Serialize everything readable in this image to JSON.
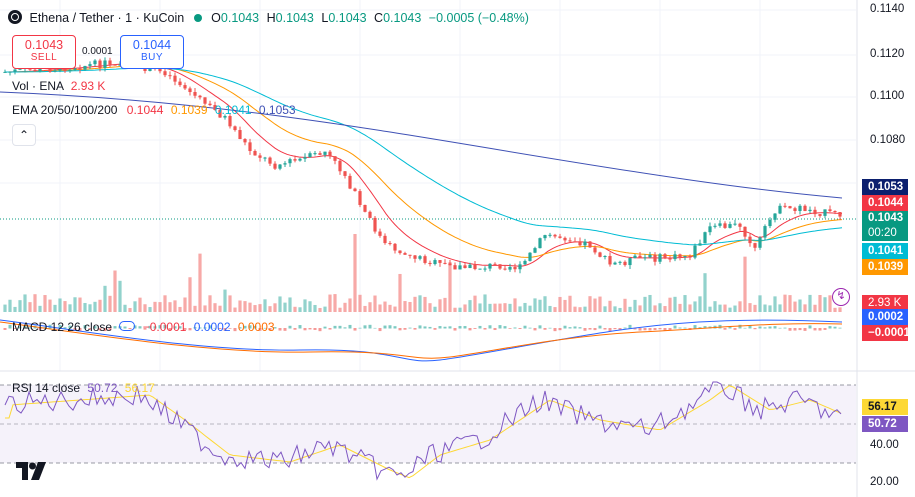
{
  "header": {
    "symbol": "Ethena / Tether · 1 · KuCoin",
    "o_label": "O",
    "o": "0.1043",
    "h_label": "H",
    "h": "0.1043",
    "l_label": "L",
    "l": "0.1043",
    "c_label": "C",
    "c": "0.1043",
    "change": "−0.0005 (−0.48%)"
  },
  "trade": {
    "sell_price": "0.1043",
    "sell_label": "SELL",
    "spread": "0.0001",
    "buy_price": "0.1044",
    "buy_label": "BUY"
  },
  "indicators": {
    "vol_label": "Vol · ENA",
    "vol_value": "2.93 K",
    "ema_label": "EMA 20/50/100/200",
    "ema20": "0.1044",
    "ema50": "0.1039",
    "ema100": "0.1041",
    "ema200": "0.1053",
    "macd_label": "MACD 12 26 close",
    "macd_hist": "−0.0001",
    "macd_line": "0.0002",
    "macd_signal": "0.0003",
    "rsi_label": "RSI 14 close",
    "rsi": "50.72",
    "rsi_ma": "56.17"
  },
  "price_axis": [
    "0.1140",
    "0.1120",
    "0.1100",
    "0.1080"
  ],
  "price_tags": {
    "ema200": "0.1053",
    "ema20": "0.1044",
    "last": "0.1043",
    "countdown": "00:20",
    "ema100": "0.1041",
    "ema50": "0.1039"
  },
  "sub_tags": {
    "vol": "2.93 K",
    "macd_line": "0.0002",
    "macd_hist": "−0.0001"
  },
  "rsi_axis": {
    "rsi_ma": "56.17",
    "rsi": "50.72",
    "l40": "40.00",
    "l20": "20.00"
  },
  "colors": {
    "up": "#26a69a",
    "down": "#ef5350",
    "ema20": "#f23645",
    "ema50": "#ff9800",
    "ema100": "#00bcd4",
    "ema200": "#3f51b5",
    "rsi": "#7e57c2",
    "rsi_ma": "#fdd835"
  },
  "icons": [
    "tradingview-logo-icon",
    "collapse-chevron-icon",
    "lightning-icon",
    "settings-toggle-icon"
  ]
}
